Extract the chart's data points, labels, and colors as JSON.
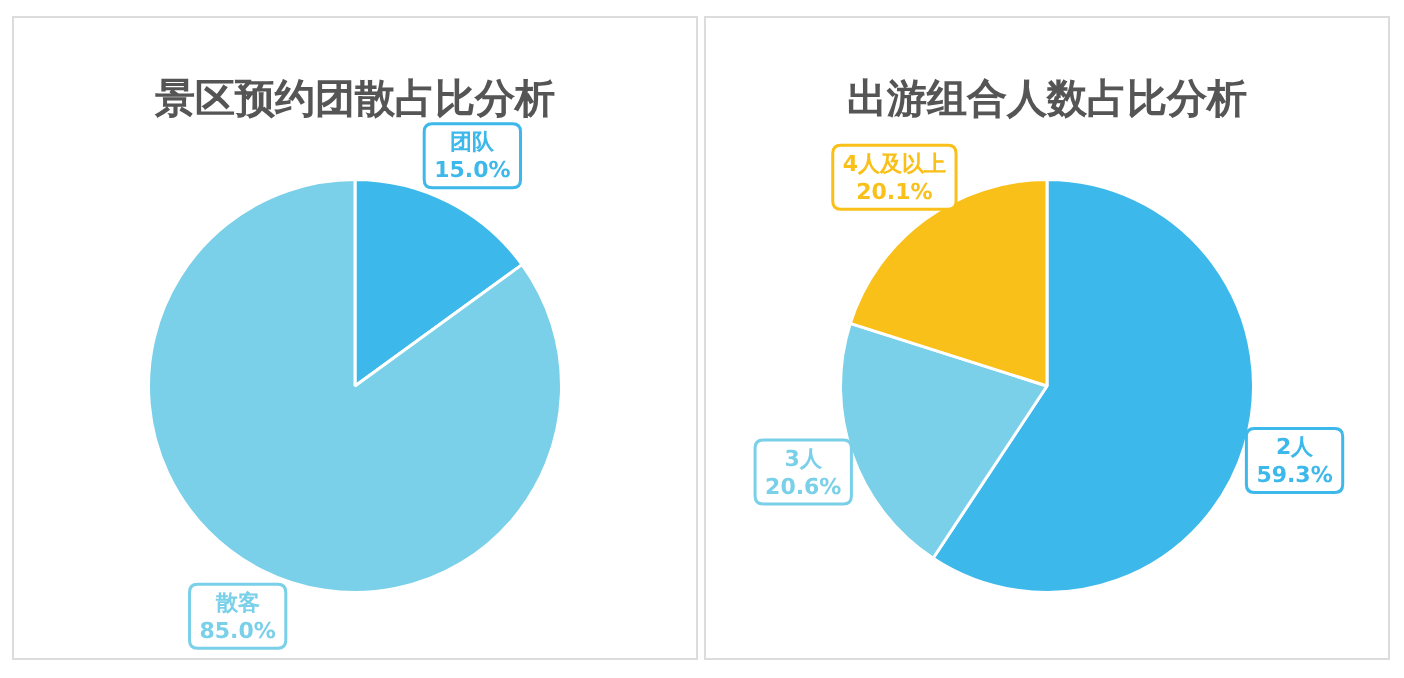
{
  "chart_data": [
    {
      "type": "pie",
      "title": "景区预约团散占比分析",
      "categories": [
        "团队",
        "散客"
      ],
      "values": [
        15.0,
        85.0
      ],
      "value_labels": [
        "15.0%",
        "85.0%"
      ],
      "colors": [
        "#3db8ea",
        "#79d0e8"
      ]
    },
    {
      "type": "pie",
      "title": "出游组合人数占比分析",
      "categories": [
        "2人",
        "3人",
        "4人及以上"
      ],
      "values": [
        59.3,
        20.6,
        20.1
      ],
      "value_labels": [
        "59.3%",
        "20.6%",
        "20.1%"
      ],
      "colors": [
        "#3db8ea",
        "#79d0e8",
        "#f9c01a"
      ]
    }
  ]
}
